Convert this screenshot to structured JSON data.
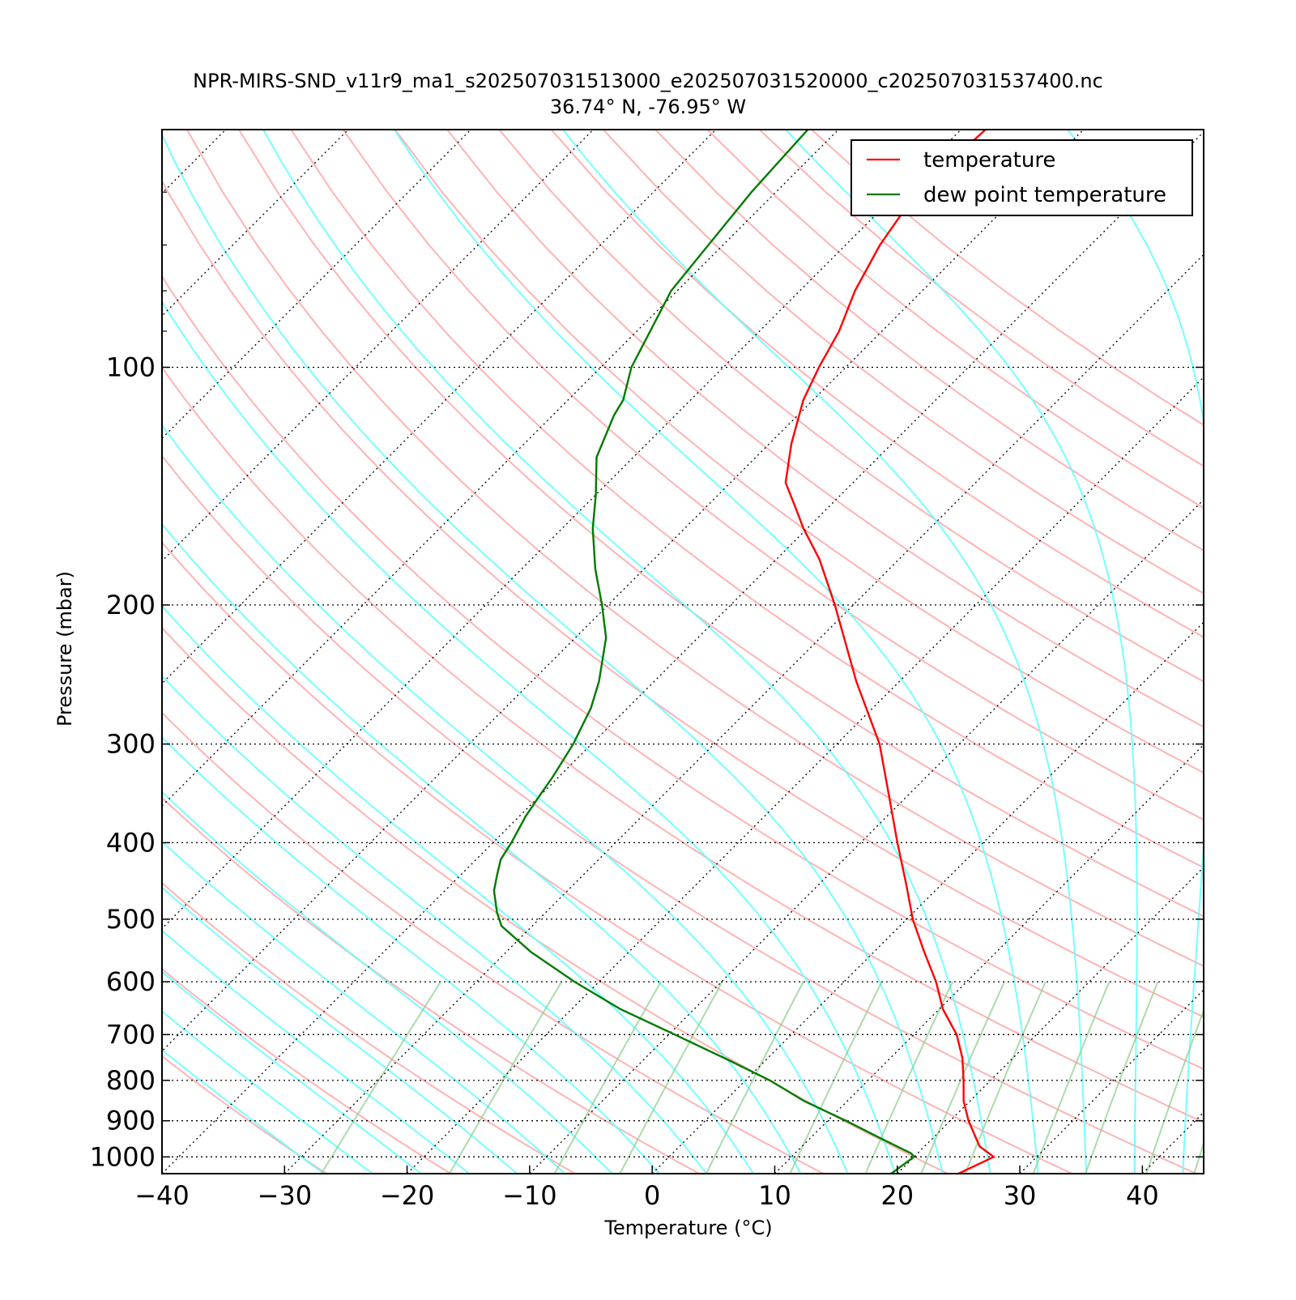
{
  "chart_data": {
    "type": "line",
    "title": "NPR-MIRS-SND_v11r9_ma1_s202507031513000_e202507031520000_c202507031537400.nc",
    "subtitle": "36.74° N, -76.95° W",
    "xlabel": "Temperature (°C)",
    "ylabel": "Pressure (mbar)",
    "xlim": [
      -40,
      45
    ],
    "ylim": [
      1050,
      50
    ],
    "yscale": "log",
    "x_ticks": [
      -40,
      -30,
      -20,
      -10,
      0,
      10,
      20,
      30,
      40
    ],
    "x_tick_labels": [
      "−40",
      "−30",
      "−20",
      "−10",
      "0",
      "10",
      "20",
      "30",
      "40"
    ],
    "y_ticks": [
      100,
      200,
      300,
      400,
      500,
      600,
      700,
      800,
      900,
      1000
    ],
    "y_tick_labels": [
      "100",
      "200",
      "300",
      "400",
      "500",
      "600",
      "700",
      "800",
      "900",
      "1000"
    ],
    "grid": "horizontal isobars dotted at labeled pressures; dotted skewed isotherms",
    "background_lines": "dry adiabats (pink), moist adiabats (cyan), mixing ratio lines (green)",
    "legend_position": "top-right",
    "series": [
      {
        "name": "temperature",
        "color": "#ff0000",
        "pressure": [
          1050,
          1000,
          970,
          900,
          850,
          800,
          750,
          700,
          650,
          600,
          550,
          500,
          450,
          400,
          350,
          300,
          250,
          200,
          175,
          160,
          150,
          140,
          125,
          110,
          100,
          90,
          80,
          70,
          60,
          50
        ],
        "temp": [
          25,
          26.5,
          24.5,
          21.5,
          19.5,
          17.8,
          15.9,
          13.5,
          10.3,
          7.5,
          4.1,
          0.5,
          -3.0,
          -7.0,
          -11.4,
          -16.5,
          -23.5,
          -31.5,
          -36.5,
          -40.3,
          -42.8,
          -45.5,
          -48.2,
          -50.8,
          -52.2,
          -53.5,
          -55.5,
          -57.2,
          -58.5,
          -58.0
        ]
      },
      {
        "name": "dew point temperature",
        "color": "#007a00",
        "pressure": [
          1050,
          1000,
          990,
          950,
          900,
          850,
          800,
          750,
          700,
          650,
          600,
          550,
          510,
          490,
          460,
          440,
          420,
          400,
          370,
          350,
          330,
          300,
          270,
          250,
          220,
          200,
          180,
          160,
          145,
          130,
          115,
          110,
          100,
          80,
          60,
          50
        ],
        "temp": [
          19.5,
          20.0,
          19.5,
          16.0,
          11.5,
          6.5,
          2.0,
          -3.5,
          -9.5,
          -16.0,
          -22.0,
          -28.0,
          -32.5,
          -34.0,
          -36.0,
          -37.0,
          -38.0,
          -38.5,
          -39.5,
          -40.0,
          -40.5,
          -41.5,
          -43.0,
          -44.5,
          -47.5,
          -50.5,
          -54.0,
          -57.5,
          -60.0,
          -63.0,
          -65.0,
          -65.5,
          -67.5,
          -70.5,
          -72.0,
          -72.5
        ]
      }
    ]
  }
}
